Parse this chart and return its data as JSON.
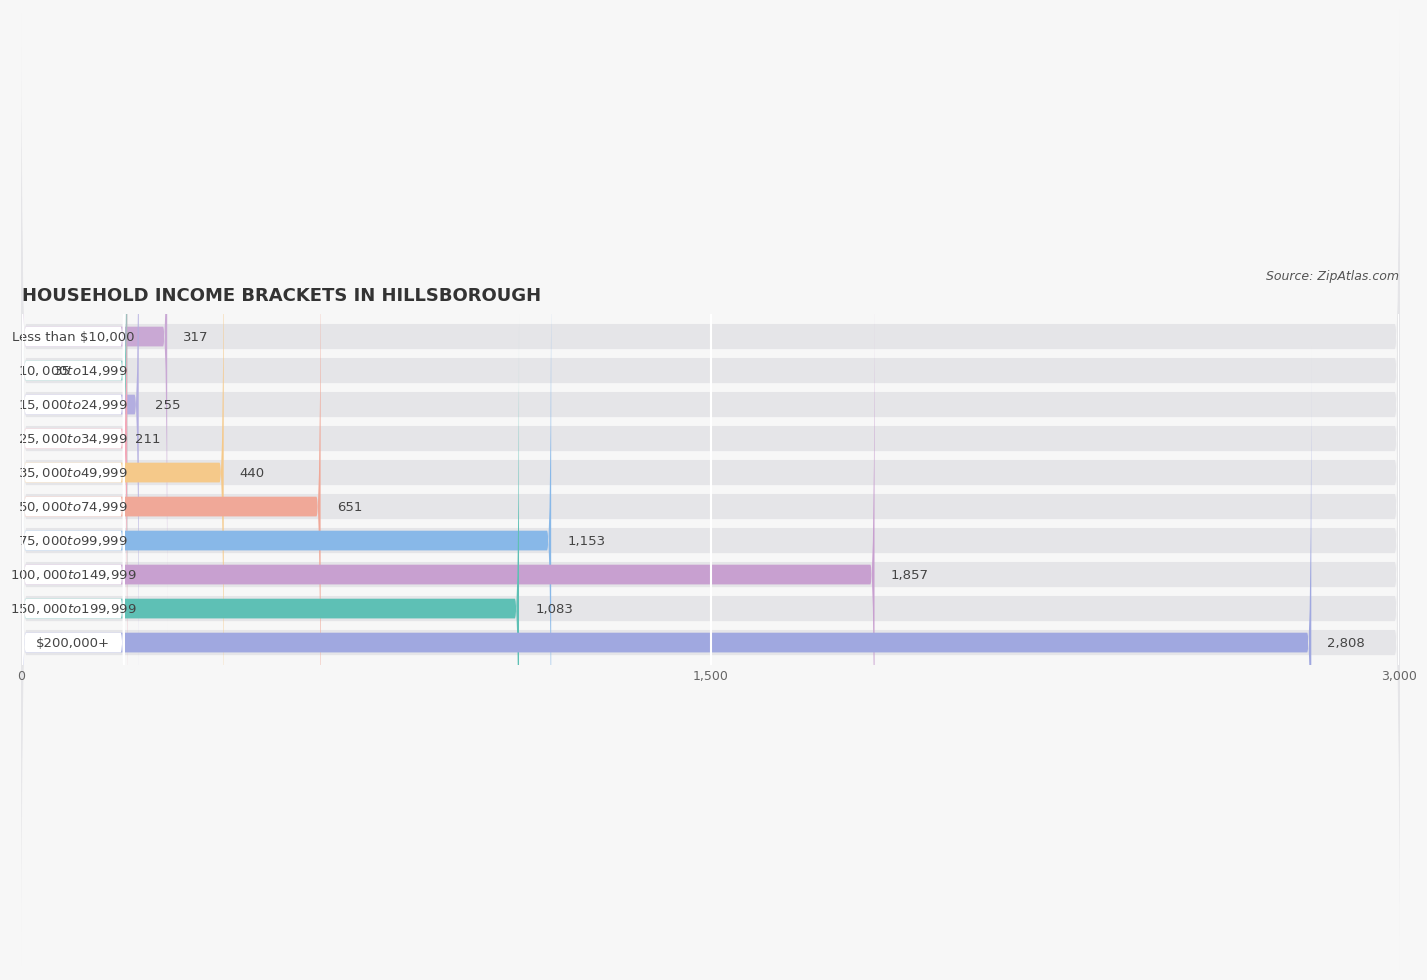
{
  "title": "HOUSEHOLD INCOME BRACKETS IN HILLSBOROUGH",
  "source": "Source: ZipAtlas.com",
  "categories": [
    "Less than $10,000",
    "$10,000 to $14,999",
    "$15,000 to $24,999",
    "$25,000 to $34,999",
    "$35,000 to $49,999",
    "$50,000 to $74,999",
    "$75,000 to $99,999",
    "$100,000 to $149,999",
    "$150,000 to $199,999",
    "$200,000+"
  ],
  "values": [
    317,
    35,
    255,
    211,
    440,
    651,
    1153,
    1857,
    1083,
    2808
  ],
  "bar_colors": [
    "#c9a8d4",
    "#7ec9c0",
    "#b3aee0",
    "#f2a8b8",
    "#f5c98a",
    "#f0a898",
    "#88b8e8",
    "#c8a0d0",
    "#5ec0b5",
    "#a0a8e0"
  ],
  "background_color": "#f7f7f7",
  "bar_bg_color": "#e5e5e8",
  "row_bg_even": "#f0f0f0",
  "row_bg_odd": "#fafafa",
  "xlim": [
    0,
    3000
  ],
  "xticks": [
    0,
    1500,
    3000
  ],
  "title_fontsize": 13,
  "label_fontsize": 9.5,
  "value_fontsize": 9.5,
  "source_fontsize": 9
}
